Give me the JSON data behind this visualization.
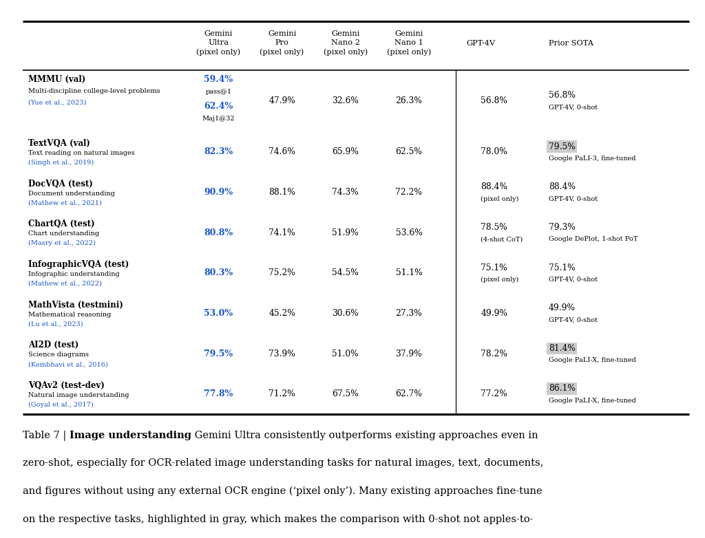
{
  "rows": [
    {
      "benchmark": "MMMU (val)",
      "sub1": "Multi-discipline college-level problems",
      "sub2": "(Yue et al., 2023)",
      "gemini_ultra": [
        "59.4%",
        "pass@1",
        "62.4%",
        "Maj1@32"
      ],
      "gemini_pro": "47.9%",
      "gemini_nano2": "32.6%",
      "gemini_nano1": "26.3%",
      "gpt4v": [
        "56.8%",
        ""
      ],
      "prior_sota_val": "56.8%",
      "prior_sota_desc": "GPT-4V, 0-shot",
      "prior_sota_highlight": false
    },
    {
      "benchmark": "TextVQA (val)",
      "sub1": "Text reading on natural images",
      "sub2": "(Singh et al., 2019)",
      "gemini_ultra": [
        "82.3%"
      ],
      "gemini_pro": "74.6%",
      "gemini_nano2": "65.9%",
      "gemini_nano1": "62.5%",
      "gpt4v": [
        "78.0%",
        ""
      ],
      "prior_sota_val": "79.5%",
      "prior_sota_desc": "Google PaLI-3, fine-tuned",
      "prior_sota_highlight": true
    },
    {
      "benchmark": "DocVQA (test)",
      "sub1": "Document understanding",
      "sub2": "(Mathew et al., 2021)",
      "gemini_ultra": [
        "90.9%"
      ],
      "gemini_pro": "88.1%",
      "gemini_nano2": "74.3%",
      "gemini_nano1": "72.2%",
      "gpt4v": [
        "88.4%",
        "(pixel only)"
      ],
      "prior_sota_val": "88.4%",
      "prior_sota_desc": "GPT-4V, 0-shot",
      "prior_sota_highlight": false
    },
    {
      "benchmark": "ChartQA (test)",
      "sub1": "Chart understanding",
      "sub2": "(Masry et al., 2022)",
      "gemini_ultra": [
        "80.8%"
      ],
      "gemini_pro": "74.1%",
      "gemini_nano2": "51.9%",
      "gemini_nano1": "53.6%",
      "gpt4v": [
        "78.5%",
        "(4-shot CoT)"
      ],
      "prior_sota_val": "79.3%",
      "prior_sota_desc": "Google DePlot, 1-shot PoT",
      "prior_sota_highlight": false
    },
    {
      "benchmark": "InfographicVQA (test)",
      "sub1": "Infographic understanding",
      "sub2": "(Mathew et al., 2022)",
      "gemini_ultra": [
        "80.3%"
      ],
      "gemini_pro": "75.2%",
      "gemini_nano2": "54.5%",
      "gemini_nano1": "51.1%",
      "gpt4v": [
        "75.1%",
        "(pixel only)"
      ],
      "prior_sota_val": "75.1%",
      "prior_sota_desc": "GPT-4V, 0-shot",
      "prior_sota_highlight": false
    },
    {
      "benchmark": "MathVista (testmini)",
      "sub1": "Mathematical reasoning",
      "sub2": "(Lu et al., 2023)",
      "gemini_ultra": [
        "53.0%"
      ],
      "gemini_pro": "45.2%",
      "gemini_nano2": "30.6%",
      "gemini_nano1": "27.3%",
      "gpt4v": [
        "49.9%",
        ""
      ],
      "prior_sota_val": "49.9%",
      "prior_sota_desc": "GPT-4V, 0-shot",
      "prior_sota_highlight": false
    },
    {
      "benchmark": "AI2D (test)",
      "sub1": "Science diagrams",
      "sub2": "(Kembhavi et al., 2016)",
      "gemini_ultra": [
        "79.5%"
      ],
      "gemini_pro": "73.9%",
      "gemini_nano2": "51.0%",
      "gemini_nano1": "37.9%",
      "gpt4v": [
        "78.2%",
        ""
      ],
      "prior_sota_val": "81.4%",
      "prior_sota_desc": "Google PaLI-X, fine-tuned",
      "prior_sota_highlight": true
    },
    {
      "benchmark": "VQAv2 (test-dev)",
      "sub1": "Natural image understanding",
      "sub2": "(Goyal et al., 2017)",
      "gemini_ultra": [
        "77.8%"
      ],
      "gemini_pro": "71.2%",
      "gemini_nano2": "67.5%",
      "gemini_nano1": "62.7%",
      "gpt4v": [
        "77.2%",
        ""
      ],
      "prior_sota_val": "86.1%",
      "prior_sota_desc": "Google PaLI-X, fine-tuned",
      "prior_sota_highlight": true
    }
  ],
  "blue": "#1a56c4",
  "gray": "#cccccc",
  "ref_blue": "#1a56c4",
  "bg": "#ffffff"
}
